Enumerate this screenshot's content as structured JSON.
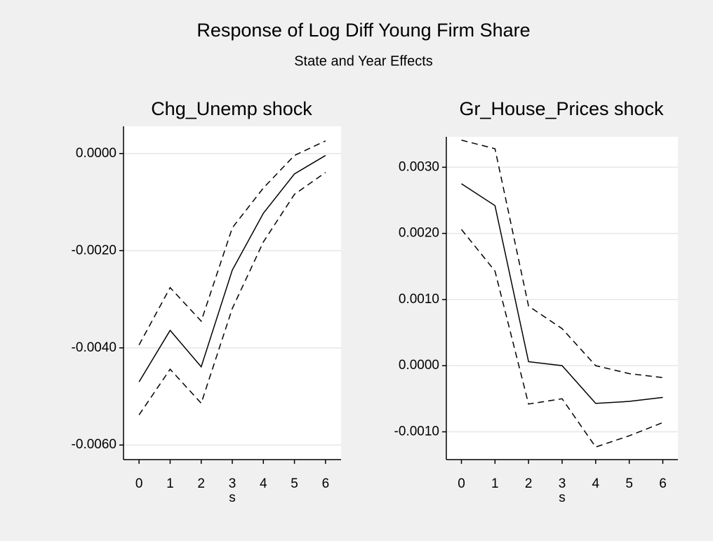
{
  "title": "Response of Log Diff Young Firm Share",
  "subtitle": "State and Year Effects",
  "chart_data": [
    {
      "type": "line",
      "title": "Chg_Unemp shock",
      "x_label": "s",
      "x": [
        0,
        1,
        2,
        3,
        4,
        5,
        6
      ],
      "xlim": [
        -0.5,
        6.5
      ],
      "xticks": [
        0,
        1,
        2,
        3,
        4,
        5,
        6
      ],
      "ylim": [
        -0.0063,
        0.00056
      ],
      "yticks": [
        {
          "value": -0.006,
          "label": "-0.0060"
        },
        {
          "value": -0.004,
          "label": "-0.0040"
        },
        {
          "value": -0.002,
          "label": "-0.0020"
        },
        {
          "value": 0,
          "label": "0.0000"
        }
      ],
      "grid": true,
      "series": [
        {
          "color": "#000000",
          "dash": "solid",
          "values": [
            -0.0047,
            -0.00364,
            -0.00439,
            -0.0024,
            -0.00123,
            -0.00042,
            -4e-05
          ]
        },
        {
          "color": "#000000",
          "dash": "dashed",
          "values": [
            -0.00394,
            -0.00276,
            -0.00345,
            -0.00153,
            -0.00071,
            -4e-05,
            0.00026
          ]
        },
        {
          "color": "#000000",
          "dash": "dashed",
          "values": [
            -0.00538,
            -0.00444,
            -0.00514,
            -0.00319,
            -0.00182,
            -0.00084,
            -0.00039
          ]
        }
      ]
    },
    {
      "type": "line",
      "title": "Gr_House_Prices shock",
      "x_label": "s",
      "x": [
        0,
        1,
        2,
        3,
        4,
        5,
        6
      ],
      "xlim": [
        -0.45,
        6.45
      ],
      "xticks": [
        0,
        1,
        2,
        3,
        4,
        5,
        6
      ],
      "ylim": [
        -0.00142,
        0.00346
      ],
      "yticks": [
        {
          "value": -0.001,
          "label": "-0.0010"
        },
        {
          "value": 0,
          "label": "0.0000"
        },
        {
          "value": 0.001,
          "label": "0.0010"
        },
        {
          "value": 0.002,
          "label": "0.0020"
        },
        {
          "value": 0.003,
          "label": "0.0030"
        }
      ],
      "grid": true,
      "series": [
        {
          "color": "#000000",
          "dash": "solid",
          "values": [
            0.00275,
            0.00242,
            6e-05,
            0.0,
            -0.00057,
            -0.00054,
            -0.00048
          ]
        },
        {
          "color": "#000000",
          "dash": "dashed",
          "values": [
            0.00341,
            0.00328,
            0.0009,
            0.00056,
            0.0,
            -0.00012,
            -0.00018
          ]
        },
        {
          "color": "#000000",
          "dash": "dashed",
          "values": [
            0.00206,
            0.00143,
            -0.00058,
            -0.0005,
            -0.00123,
            -0.00106,
            -0.00086
          ]
        }
      ]
    }
  ]
}
